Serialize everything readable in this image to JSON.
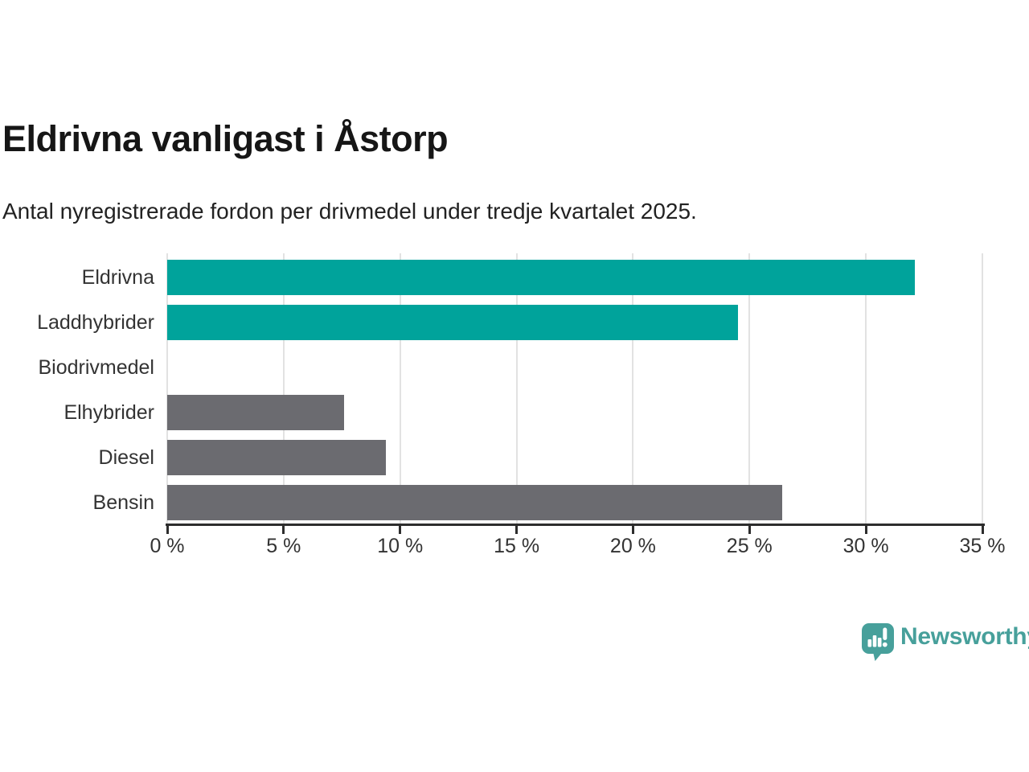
{
  "chart_data": {
    "type": "bar",
    "orientation": "horizontal",
    "title": "Eldrivna vanligast i Åstorp",
    "subtitle": "Antal nyregistrerade fordon per drivmedel under tredje kvartalet 2025.",
    "categories": [
      "Eldrivna",
      "Laddhybrider",
      "Biodrivmedel",
      "Elhybrider",
      "Diesel",
      "Bensin"
    ],
    "values": [
      32.1,
      24.5,
      0,
      7.6,
      9.4,
      26.4
    ],
    "unit": "%",
    "bar_colors": [
      "#00a39b",
      "#00a39b",
      "#6b6b70",
      "#6b6b70",
      "#6b6b70",
      "#6b6b70"
    ],
    "highlight_color": "#00a39b",
    "default_color": "#6b6b70",
    "xlabel": "",
    "ylabel": "",
    "xlim": [
      0,
      35
    ],
    "x_ticks": [
      0,
      5,
      10,
      15,
      20,
      25,
      30,
      35
    ],
    "x_tick_labels": [
      "0 %",
      "5 %",
      "10 %",
      "15 %",
      "20 %",
      "25 %",
      "30 %",
      "35 %"
    ],
    "grid": "vertical-only",
    "gridline_color": "#e2e2e2",
    "axis_color": "#2d2d2d",
    "legend": "none"
  },
  "branding": {
    "logo_text": "Newsworthy",
    "logo_color": "#47a09b",
    "logo_icon": "speech-bubble-bar-chart-exclamation"
  }
}
